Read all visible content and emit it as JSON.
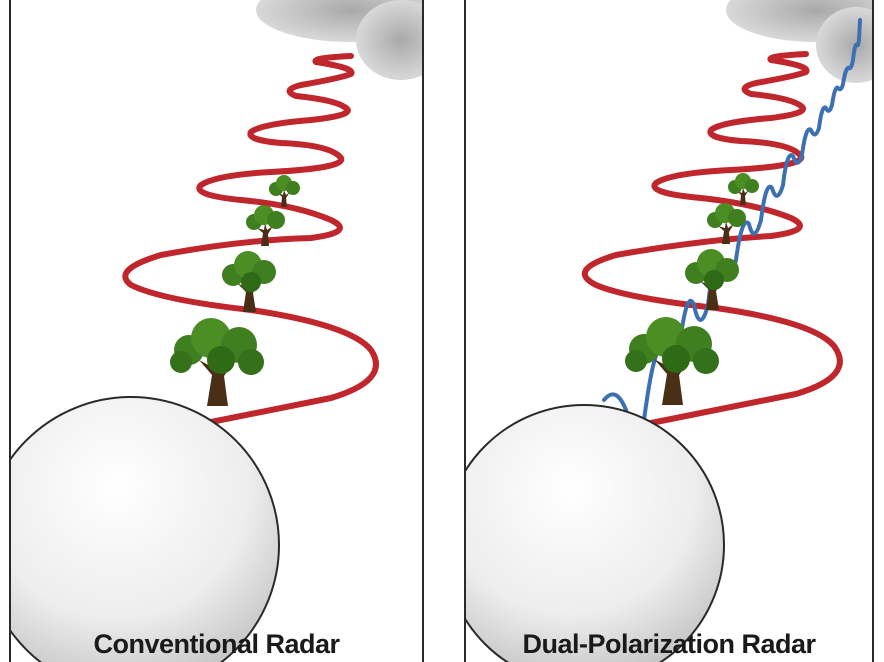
{
  "panels": [
    {
      "caption": "Conventional Radar",
      "waves": [
        "horizontal"
      ]
    },
    {
      "caption": "Dual-Polarization Radar",
      "waves": [
        "horizontal",
        "vertical"
      ]
    }
  ],
  "colors": {
    "horizontal_wave": "#c0272d",
    "vertical_wave": "#3d6fb3",
    "tree_foliage": "#3f7f1f",
    "tree_trunk": "#4a2e16",
    "cloud": "#c9c9c9",
    "dish": "#f4f4f4"
  }
}
